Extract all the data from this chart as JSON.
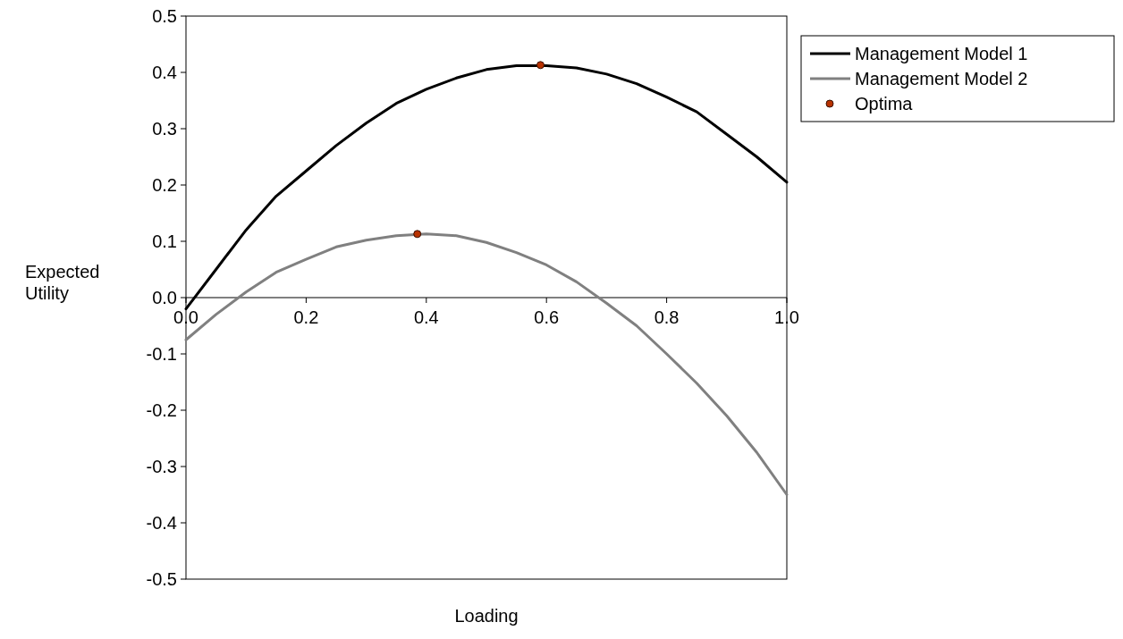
{
  "chart_data": {
    "type": "line",
    "xlabel": "Loading",
    "ylabel": "Expected Utility",
    "xlim": [
      0,
      1
    ],
    "xticks": [
      {
        "value": 0,
        "label": "0.0"
      },
      0.2,
      0.4,
      0.6,
      0.8,
      {
        "value": 1,
        "label": "1.0"
      }
    ],
    "ylim": [
      -0.5,
      0.5
    ],
    "yticks": [
      -0.5,
      -0.4,
      -0.3,
      -0.2,
      -0.1,
      {
        "value": 0,
        "label": "0.0"
      },
      0.1,
      0.2,
      0.3,
      0.4,
      0.5
    ],
    "grid": false,
    "legend": "right",
    "line_style": "solid",
    "series": [
      {
        "name": "Management Model 1",
        "color": "#000000",
        "marker": "none",
        "x": [
          0,
          0.05,
          0.1,
          0.15,
          0.2,
          0.25,
          0.3,
          0.35,
          0.4,
          0.45,
          0.5,
          0.55,
          0.6,
          0.65,
          0.7,
          0.75,
          0.8,
          0.85,
          0.9,
          0.95,
          1
        ],
        "values": [
          -0.02,
          0.05,
          0.12,
          0.18,
          0.225,
          0.27,
          0.31,
          0.345,
          0.37,
          0.39,
          0.405,
          0.412,
          0.412,
          0.408,
          0.397,
          0.38,
          0.356,
          0.33,
          0.29,
          0.25,
          0.205
        ]
      },
      {
        "name": "Management Model 2",
        "color": "#808080",
        "marker": "none",
        "x": [
          0,
          0.05,
          0.1,
          0.15,
          0.2,
          0.25,
          0.3,
          0.35,
          0.4,
          0.45,
          0.5,
          0.55,
          0.6,
          0.65,
          0.7,
          0.75,
          0.8,
          0.85,
          0.9,
          0.95,
          1
        ],
        "values": [
          -0.075,
          -0.03,
          0.01,
          0.045,
          0.068,
          0.09,
          0.102,
          0.11,
          0.113,
          0.11,
          0.098,
          0.08,
          0.058,
          0.028,
          -0.01,
          -0.05,
          -0.1,
          -0.152,
          -0.21,
          -0.275,
          -0.35
        ]
      },
      {
        "name": "Optima",
        "type": "scatter",
        "color": "#b83200",
        "marker": "circle",
        "x": [
          0.59,
          0.385
        ],
        "values": [
          0.413,
          0.113
        ]
      }
    ]
  }
}
